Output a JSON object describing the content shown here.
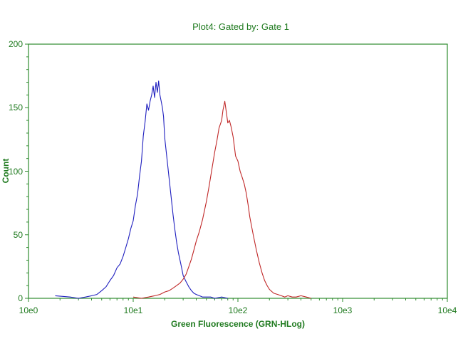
{
  "colors": {
    "axis": "#2e8b2e",
    "text": "#1f7a1f",
    "series_blue": "#1f1fbf",
    "series_red": "#c02828"
  },
  "chart_data": {
    "type": "line",
    "title": "Plot4:  Gated by: Gate 1",
    "xlabel": "Green Fluorescence (GRN-HLog)",
    "ylabel": "Count",
    "x_scale": "log",
    "xlim": [
      1,
      10000
    ],
    "ylim": [
      0,
      200
    ],
    "x_tick_labels": [
      "10e0",
      "10e1",
      "10e2",
      "10e3",
      "10e4"
    ],
    "y_tick_labels": [
      "0",
      "50",
      "100",
      "150",
      "200"
    ],
    "grid": false,
    "legend": "none",
    "series": [
      {
        "color": "#1f1fbf",
        "x": [
          1.8,
          2.5,
          3,
          3.5,
          4,
          4.5,
          5,
          5.5,
          6,
          6.5,
          7,
          7.5,
          8,
          8.5,
          9,
          9.5,
          10,
          10.5,
          11,
          11.5,
          12,
          12.5,
          13,
          13.5,
          14,
          14.5,
          15,
          15.5,
          16,
          16.5,
          17,
          17.5,
          18,
          18.5,
          19,
          19.5,
          20,
          21,
          22,
          23,
          24,
          25,
          26,
          27,
          28,
          29,
          30,
          32,
          34,
          36,
          38,
          40,
          43,
          46,
          50,
          55,
          60,
          70,
          80
        ],
        "y": [
          2,
          1,
          0,
          1,
          2,
          3,
          6,
          9,
          14,
          18,
          24,
          27,
          33,
          40,
          47,
          55,
          61,
          73,
          82,
          96,
          108,
          128,
          139,
          153,
          148,
          155,
          160,
          167,
          158,
          170,
          162,
          171,
          160,
          155,
          150,
          143,
          126,
          110,
          95,
          80,
          66,
          54,
          44,
          36,
          30,
          24,
          18,
          13,
          9,
          6,
          4,
          3,
          2,
          1,
          1,
          1,
          0,
          1,
          0
        ]
      },
      {
        "color": "#c02828",
        "x": [
          10,
          12,
          14,
          16,
          18,
          20,
          22,
          24,
          26,
          28,
          30,
          32,
          34,
          36,
          38,
          40,
          43,
          46,
          50,
          53,
          56,
          60,
          63,
          66,
          70,
          72,
          75,
          78,
          80,
          83,
          86,
          90,
          95,
          100,
          105,
          110,
          115,
          120,
          125,
          130,
          140,
          150,
          160,
          170,
          180,
          190,
          200,
          220,
          240,
          260,
          280,
          300,
          330,
          360,
          400,
          450,
          500
        ],
        "y": [
          1,
          0,
          1,
          2,
          3,
          5,
          6,
          8,
          10,
          12,
          15,
          19,
          25,
          31,
          38,
          45,
          53,
          62,
          76,
          88,
          100,
          115,
          124,
          134,
          140,
          148,
          155,
          145,
          138,
          140,
          135,
          127,
          112,
          108,
          100,
          95,
          90,
          83,
          74,
          64,
          50,
          38,
          28,
          20,
          14,
          10,
          7,
          4,
          3,
          2,
          1,
          2,
          1,
          1,
          2,
          1,
          0
        ]
      }
    ]
  }
}
